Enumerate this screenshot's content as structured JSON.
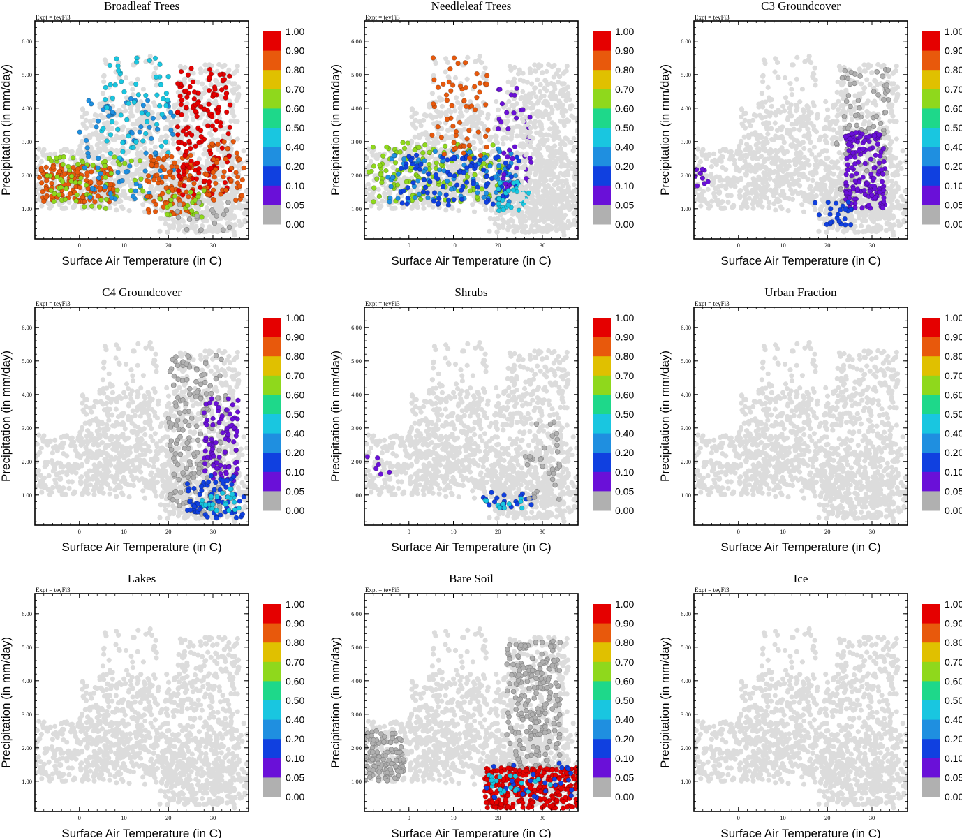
{
  "figure": {
    "expt_label": "Expt = teyFi3",
    "xlabel": "Surface Air Temperature (in C)",
    "ylabel": "Precipitation (in mm/day)",
    "x_ticks": [
      "0",
      "10",
      "20",
      "30"
    ],
    "y_ticks": [
      "1.00",
      "2.00",
      "3.00",
      "4.00",
      "5.00",
      "6.00"
    ],
    "xlim": [
      -10,
      38
    ],
    "ylim": [
      0.1,
      6.6
    ],
    "colorbar": {
      "labels": [
        "1.00",
        "0.90",
        "0.80",
        "0.70",
        "0.60",
        "0.50",
        "0.40",
        "0.20",
        "0.10",
        "0.05",
        "0.00"
      ],
      "colors": [
        "#e50000",
        "#e8590c",
        "#e0c000",
        "#8fd81c",
        "#1ed88a",
        "#19c6e0",
        "#1f8fe0",
        "#1040e0",
        "#6a10d8",
        "#b0b0b0"
      ]
    },
    "colors": {
      "background_points": "#dcdcdc",
      "zero_points": "#a8a8a8"
    }
  },
  "chart_data": [
    {
      "type": "scatter",
      "title": "Broadleaf Trees",
      "xlabel": "Surface Air Temperature (in C)",
      "ylabel": "Precipitation (in mm/day)",
      "xlim": [
        -10,
        38
      ],
      "ylim": [
        0.1,
        6.6
      ],
      "clusters": [
        {
          "x": [
            -9,
            8
          ],
          "y": [
            1.2,
            2.3
          ],
          "bin": 1,
          "n": 140
        },
        {
          "x": [
            -8,
            15
          ],
          "y": [
            1.0,
            2.6
          ],
          "bin": 3,
          "n": 70
        },
        {
          "x": [
            0,
            22
          ],
          "y": [
            1.2,
            4.3
          ],
          "bin": 6,
          "n": 80
        },
        {
          "x": [
            5,
            20
          ],
          "y": [
            2.5,
            5.5
          ],
          "bin": 5,
          "n": 60
        },
        {
          "x": [
            15,
            26
          ],
          "y": [
            0.8,
            2.6
          ],
          "bin": 1,
          "n": 90
        },
        {
          "x": [
            22,
            34
          ],
          "y": [
            1.4,
            5.2
          ],
          "bin": 0,
          "n": 170
        },
        {
          "x": [
            28,
            37
          ],
          "y": [
            1.2,
            3.0
          ],
          "bin": 1,
          "n": 50
        },
        {
          "x": [
            18,
            28
          ],
          "y": [
            0.7,
            1.6
          ],
          "bin": 3,
          "n": 25
        },
        {
          "x": [
            22,
            34
          ],
          "y": [
            0.3,
            1.2
          ],
          "bin": 9,
          "n": 20
        }
      ]
    },
    {
      "type": "scatter",
      "title": "Needleleaf Trees",
      "xlabel": "Surface Air Temperature (in C)",
      "ylabel": "Precipitation (in mm/day)",
      "xlim": [
        -10,
        38
      ],
      "ylim": [
        0.1,
        6.6
      ],
      "clusters": [
        {
          "x": [
            -9,
            22
          ],
          "y": [
            1.2,
            3.0
          ],
          "bin": 3,
          "n": 130
        },
        {
          "x": [
            -5,
            24
          ],
          "y": [
            1.2,
            2.8
          ],
          "bin": 6,
          "n": 90
        },
        {
          "x": [
            -2,
            25
          ],
          "y": [
            1.1,
            2.6
          ],
          "bin": 7,
          "n": 100
        },
        {
          "x": [
            5,
            18
          ],
          "y": [
            2.5,
            5.5
          ],
          "bin": 1,
          "n": 60
        },
        {
          "x": [
            20,
            28
          ],
          "y": [
            1.6,
            4.6
          ],
          "bin": 8,
          "n": 40
        },
        {
          "x": [
            20,
            27
          ],
          "y": [
            0.8,
            1.8
          ],
          "bin": 5,
          "n": 30
        },
        {
          "x": [
            25,
            38
          ],
          "y": [
            0.3,
            4.5
          ],
          "bin": -1,
          "n": 260
        }
      ]
    },
    {
      "type": "scatter",
      "title": "C3 Groundcover",
      "xlabel": "Surface Air Temperature (in C)",
      "ylabel": "Precipitation (in mm/day)",
      "xlim": [
        -10,
        38
      ],
      "ylim": [
        0.1,
        6.6
      ],
      "clusters": [
        {
          "x": [
            22,
            34
          ],
          "y": [
            1.2,
            5.2
          ],
          "bin": 9,
          "n": 90
        },
        {
          "x": [
            24,
            33
          ],
          "y": [
            1.0,
            3.3
          ],
          "bin": 8,
          "n": 150
        },
        {
          "x": [
            17,
            26
          ],
          "y": [
            0.5,
            1.2
          ],
          "bin": 7,
          "n": 25
        },
        {
          "x": [
            -10,
            -6
          ],
          "y": [
            1.4,
            2.2
          ],
          "bin": 8,
          "n": 10
        }
      ]
    },
    {
      "type": "scatter",
      "title": "C4 Groundcover",
      "xlabel": "Surface Air Temperature (in C)",
      "ylabel": "Precipitation (in mm/day)",
      "xlim": [
        -10,
        38
      ],
      "ylim": [
        0.1,
        6.6
      ],
      "clusters": [
        {
          "x": [
            20,
            33
          ],
          "y": [
            0.4,
            5.2
          ],
          "bin": 9,
          "n": 180
        },
        {
          "x": [
            28,
            36
          ],
          "y": [
            1.4,
            3.9
          ],
          "bin": 8,
          "n": 90
        },
        {
          "x": [
            24,
            37
          ],
          "y": [
            0.3,
            1.6
          ],
          "bin": 7,
          "n": 70
        },
        {
          "x": [
            25,
            36
          ],
          "y": [
            0.5,
            1.2
          ],
          "bin": 5,
          "n": 25
        }
      ]
    },
    {
      "type": "scatter",
      "title": "Shrubs",
      "xlabel": "Surface Air Temperature (in C)",
      "ylabel": "Precipitation (in mm/day)",
      "xlim": [
        -10,
        38
      ],
      "ylim": [
        0.1,
        6.6
      ],
      "clusters": [
        {
          "x": [
            -10,
            -4
          ],
          "y": [
            1.6,
            2.2
          ],
          "bin": 8,
          "n": 6
        },
        {
          "x": [
            16,
            28
          ],
          "y": [
            0.6,
            1.1
          ],
          "bin": 7,
          "n": 20
        },
        {
          "x": [
            17,
            26
          ],
          "y": [
            0.6,
            0.9
          ],
          "bin": 5,
          "n": 10
        },
        {
          "x": [
            26,
            34
          ],
          "y": [
            0.8,
            3.2
          ],
          "bin": 9,
          "n": 30
        }
      ]
    },
    {
      "type": "scatter",
      "title": "Urban Fraction",
      "xlabel": "Surface Air Temperature (in C)",
      "ylabel": "Precipitation (in mm/day)",
      "xlim": [
        -10,
        38
      ],
      "ylim": [
        0.1,
        6.6
      ],
      "clusters": []
    },
    {
      "type": "scatter",
      "title": "Lakes",
      "xlabel": "Surface Air Temperature (in C)",
      "ylabel": "Precipitation (in mm/day)",
      "xlim": [
        -10,
        38
      ],
      "ylim": [
        0.1,
        6.6
      ],
      "clusters": []
    },
    {
      "type": "scatter",
      "title": "Bare Soil",
      "xlabel": "Surface Air Temperature (in C)",
      "ylabel": "Precipitation (in mm/day)",
      "xlim": [
        -10,
        38
      ],
      "ylim": [
        0.1,
        6.6
      ],
      "clusters": [
        {
          "x": [
            -10,
            -1
          ],
          "y": [
            1.0,
            2.5
          ],
          "bin": 9,
          "n": 120
        },
        {
          "x": [
            22,
            34
          ],
          "y": [
            1.2,
            5.2
          ],
          "bin": 9,
          "n": 220
        },
        {
          "x": [
            17,
            38
          ],
          "y": [
            0.2,
            1.4
          ],
          "bin": 0,
          "n": 300
        },
        {
          "x": [
            17,
            37
          ],
          "y": [
            0.5,
            1.6
          ],
          "bin": 7,
          "n": 30
        },
        {
          "x": [
            18,
            32
          ],
          "y": [
            0.6,
            1.2
          ],
          "bin": 5,
          "n": 20
        }
      ]
    },
    {
      "type": "scatter",
      "title": "Ice",
      "xlabel": "Surface Air Temperature (in C)",
      "ylabel": "Precipitation (in mm/day)",
      "xlim": [
        -10,
        38
      ],
      "ylim": [
        0.1,
        6.6
      ],
      "clusters": []
    }
  ]
}
